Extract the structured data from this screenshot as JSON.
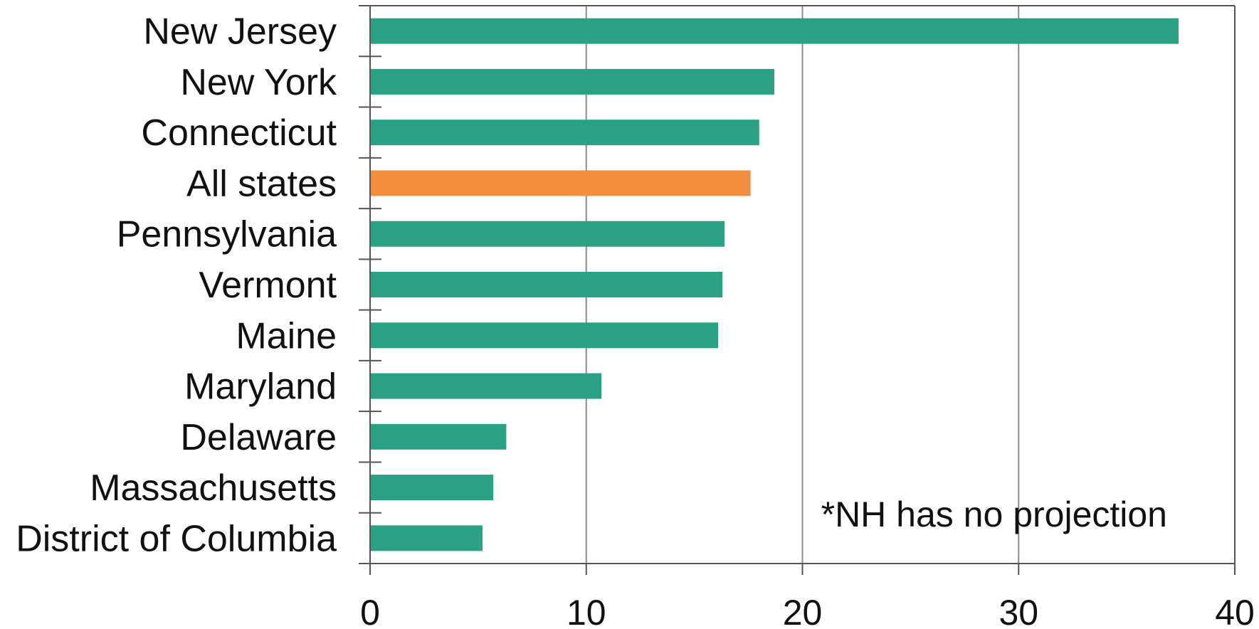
{
  "chart_data": {
    "type": "bar",
    "orientation": "horizontal",
    "categories": [
      "New Jersey",
      "New York",
      "Connecticut",
      "All states",
      "Pennsylvania",
      "Vermont",
      "Maine",
      "Maryland",
      "Delaware",
      "Massachusetts",
      "District of Columbia"
    ],
    "values": [
      37.4,
      18.7,
      18.0,
      17.6,
      16.4,
      16.3,
      16.1,
      10.7,
      6.3,
      5.7,
      5.2
    ],
    "highlight_category": "All states",
    "xlim": [
      0,
      40
    ],
    "xticks": [
      "0",
      "10",
      "20",
      "30",
      "40"
    ],
    "grid": "vertical",
    "annotation": "*NH has no projection",
    "colors": {
      "bar": "#2aa184",
      "highlight": "#f48d3c",
      "axis": "#555555",
      "grid": "#8c8c8c"
    }
  }
}
